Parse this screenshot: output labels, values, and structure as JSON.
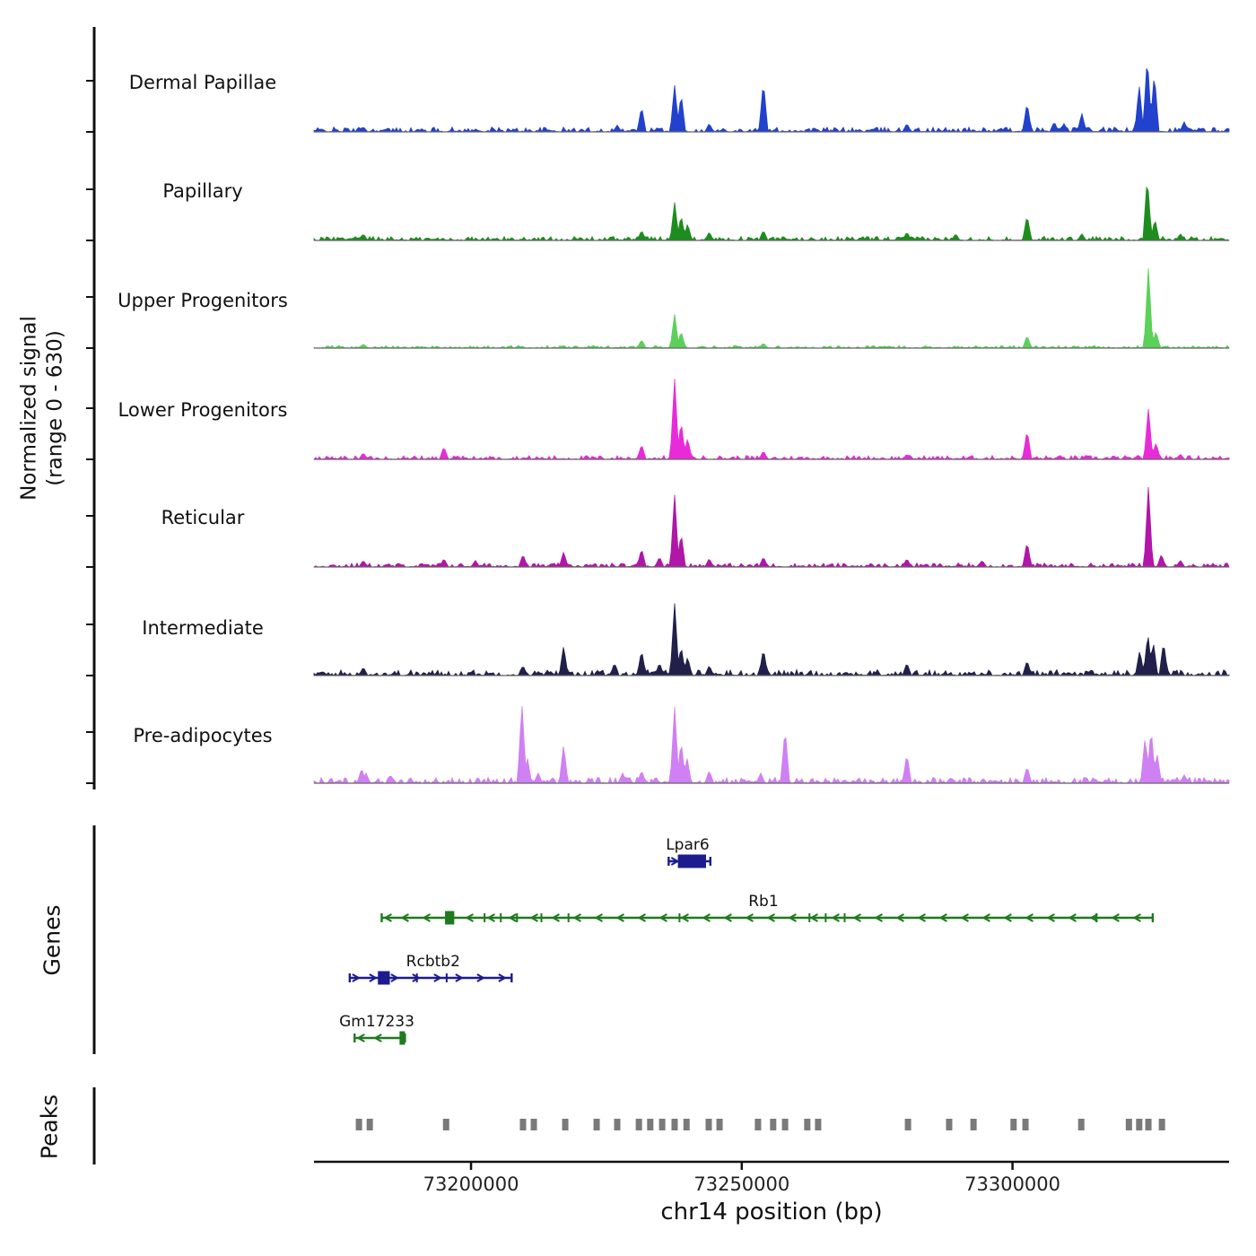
{
  "figure": {
    "ylabel": "Normalized signal\n(range 0 - 630)",
    "genes_label": "Genes",
    "peaks_label": "Peaks",
    "xlabel": "chr14 position (bp)"
  },
  "chart_data": {
    "type": "area",
    "title": "",
    "x_axis": {
      "label": "chr14 position (bp)",
      "ticks": [
        73200000,
        73250000,
        73300000
      ],
      "range": [
        73171000,
        73340000
      ]
    },
    "y_axis": {
      "label": "Normalized signal (range 0 - 630)",
      "range": [
        0,
        630
      ]
    },
    "tracks": [
      {
        "name": "Dermal Papillae",
        "color": "#2241cd",
        "noise": 1.8,
        "peaks": [
          [
            73180100,
            38
          ],
          [
            73227000,
            50
          ],
          [
            73231500,
            189
          ],
          [
            73237600,
            347
          ],
          [
            73238800,
            284
          ],
          [
            73244000,
            63
          ],
          [
            73254000,
            378
          ],
          [
            73280500,
            63
          ],
          [
            73302700,
            220
          ],
          [
            73307700,
            76
          ],
          [
            73309500,
            63
          ],
          [
            73312800,
            139
          ],
          [
            73323400,
            347
          ],
          [
            73324900,
            567
          ],
          [
            73326200,
            441
          ],
          [
            73331700,
            76
          ]
        ]
      },
      {
        "name": "Papillary",
        "color": "#1e8c1e",
        "noise": 1.5,
        "peaks": [
          [
            73180100,
            50
          ],
          [
            73231500,
            76
          ],
          [
            73237600,
            284
          ],
          [
            73238800,
            189
          ],
          [
            73240000,
            126
          ],
          [
            73244000,
            63
          ],
          [
            73254000,
            76
          ],
          [
            73280500,
            63
          ],
          [
            73289500,
            50
          ],
          [
            73302700,
            189
          ],
          [
            73312800,
            50
          ],
          [
            73324900,
            473
          ],
          [
            73326300,
            158
          ],
          [
            73331000,
            50
          ]
        ]
      },
      {
        "name": "Upper Progenitors",
        "color": "#5bd05b",
        "noise": 1.0,
        "peaks": [
          [
            73180100,
            32
          ],
          [
            73231500,
            63
          ],
          [
            73237600,
            252
          ],
          [
            73238800,
            126
          ],
          [
            73254000,
            38
          ],
          [
            73302700,
            95
          ],
          [
            73325100,
            599
          ],
          [
            73326500,
            126
          ]
        ]
      },
      {
        "name": "Lower Progenitors",
        "color": "#e82bd8",
        "noise": 1.5,
        "peaks": [
          [
            73180100,
            50
          ],
          [
            73195000,
            95
          ],
          [
            73231500,
            113
          ],
          [
            73237600,
            599
          ],
          [
            73238800,
            284
          ],
          [
            73240000,
            158
          ],
          [
            73254000,
            63
          ],
          [
            73280500,
            38
          ],
          [
            73302700,
            220
          ],
          [
            73325100,
            378
          ],
          [
            73326500,
            126
          ],
          [
            73331000,
            38
          ]
        ]
      },
      {
        "name": "Reticular",
        "color": "#b016a8",
        "noise": 1.5,
        "peaks": [
          [
            73180100,
            50
          ],
          [
            73195000,
            63
          ],
          [
            73200800,
            50
          ],
          [
            73209600,
            95
          ],
          [
            73217100,
            113
          ],
          [
            73231500,
            139
          ],
          [
            73234800,
            76
          ],
          [
            73237600,
            536
          ],
          [
            73238800,
            252
          ],
          [
            73244000,
            63
          ],
          [
            73254000,
            76
          ],
          [
            73280500,
            63
          ],
          [
            73294400,
            50
          ],
          [
            73302700,
            189
          ],
          [
            73325100,
            599
          ],
          [
            73327500,
            95
          ],
          [
            73331000,
            50
          ]
        ]
      },
      {
        "name": "Intermediate",
        "color": "#20204a",
        "noise": 2.2,
        "peaks": [
          [
            73180100,
            63
          ],
          [
            73209600,
            76
          ],
          [
            73217100,
            220
          ],
          [
            73226500,
            95
          ],
          [
            73231500,
            189
          ],
          [
            73234800,
            95
          ],
          [
            73237600,
            536
          ],
          [
            73238800,
            220
          ],
          [
            73240000,
            139
          ],
          [
            73244000,
            76
          ],
          [
            73254000,
            200
          ],
          [
            73280500,
            95
          ],
          [
            73302700,
            113
          ],
          [
            73323500,
            189
          ],
          [
            73325000,
            315
          ],
          [
            73326000,
            252
          ],
          [
            73327900,
            252
          ]
        ]
      },
      {
        "name": "Pre-adipocytes",
        "color": "#cf80f2",
        "noise": 2.2,
        "peaks": [
          [
            73179800,
            113
          ],
          [
            73180600,
            76
          ],
          [
            73185100,
            63
          ],
          [
            73209400,
            599
          ],
          [
            73210400,
            189
          ],
          [
            73212400,
            76
          ],
          [
            73217100,
            284
          ],
          [
            73228000,
            76
          ],
          [
            73231500,
            95
          ],
          [
            73237600,
            567
          ],
          [
            73238800,
            315
          ],
          [
            73239900,
            189
          ],
          [
            73244000,
            95
          ],
          [
            73253500,
            76
          ],
          [
            73258000,
            410
          ],
          [
            73280500,
            220
          ],
          [
            73302700,
            126
          ],
          [
            73324500,
            347
          ],
          [
            73325600,
            410
          ],
          [
            73326700,
            220
          ],
          [
            73331700,
            63
          ]
        ]
      }
    ],
    "genes": [
      {
        "name": "Lpar6",
        "strand": "+",
        "start": 73236500,
        "end": 73244200,
        "color": "#1c1c8f",
        "thick": [
          73238200,
          73243400
        ],
        "exons": [],
        "row": 0,
        "label_bp": 73240000
      },
      {
        "name": "Rb1",
        "strand": "-",
        "start": 73183500,
        "end": 73325900,
        "color": "#1e7a1e",
        "thick": [
          73195200,
          73196900
        ],
        "exons": [
          73202500,
          73205500,
          73208500,
          73213000,
          73218000,
          73238500,
          73262500,
          73265500,
          73269000,
          73315500
        ],
        "row": 1,
        "label_bp": 73254000
      },
      {
        "name": "Rcbtb2",
        "strand": "+",
        "start": 73177600,
        "end": 73207500,
        "color": "#1c1c8f",
        "thick": [
          73182800,
          73185000
        ],
        "exons": [
          73190000,
          73195500
        ],
        "row": 2,
        "label_bp": 73193000
      },
      {
        "name": "Gm17233",
        "strand": "-",
        "start": 73178500,
        "end": 73187800,
        "color": "#1e7a1e",
        "thick": [
          73186800,
          73187800
        ],
        "exons": [],
        "row": 3,
        "label_bp": 73182600
      }
    ],
    "peaks_track": {
      "color": "#7a7a7a",
      "positions": [
        73179300,
        73181300,
        73195400,
        73209600,
        73211600,
        73217400,
        73223200,
        73227000,
        73231000,
        73233100,
        73235300,
        73237600,
        73239800,
        73243900,
        73245900,
        73253000,
        73255800,
        73258000,
        73262100,
        73264100,
        73280700,
        73288300,
        73292800,
        73300200,
        73302400,
        73312700,
        73321500,
        73323400,
        73325100,
        73327600
      ]
    }
  }
}
